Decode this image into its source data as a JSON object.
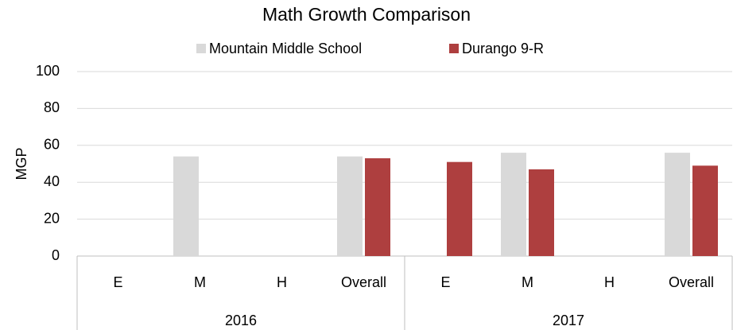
{
  "chart_data": {
    "type": "bar",
    "title": "Math Growth Comparison",
    "ylabel": "MGP",
    "groups": [
      {
        "label": "2016",
        "categories": [
          "E",
          "M",
          "H",
          "Overall"
        ]
      },
      {
        "label": "2017",
        "categories": [
          "E",
          "M",
          "H",
          "Overall"
        ]
      }
    ],
    "series": [
      {
        "name": "Mountain Middle School",
        "color": "#d9d9d9",
        "values": [
          null,
          54,
          null,
          54,
          null,
          56,
          null,
          56
        ]
      },
      {
        "name": "Durango 9-R",
        "color": "#ae3f3f",
        "values": [
          null,
          null,
          null,
          53,
          51,
          47,
          null,
          49
        ]
      }
    ],
    "ylim": [
      0,
      100
    ],
    "yticks": [
      0,
      20,
      40,
      60,
      80,
      100
    ],
    "grid": true,
    "legend": "top"
  }
}
